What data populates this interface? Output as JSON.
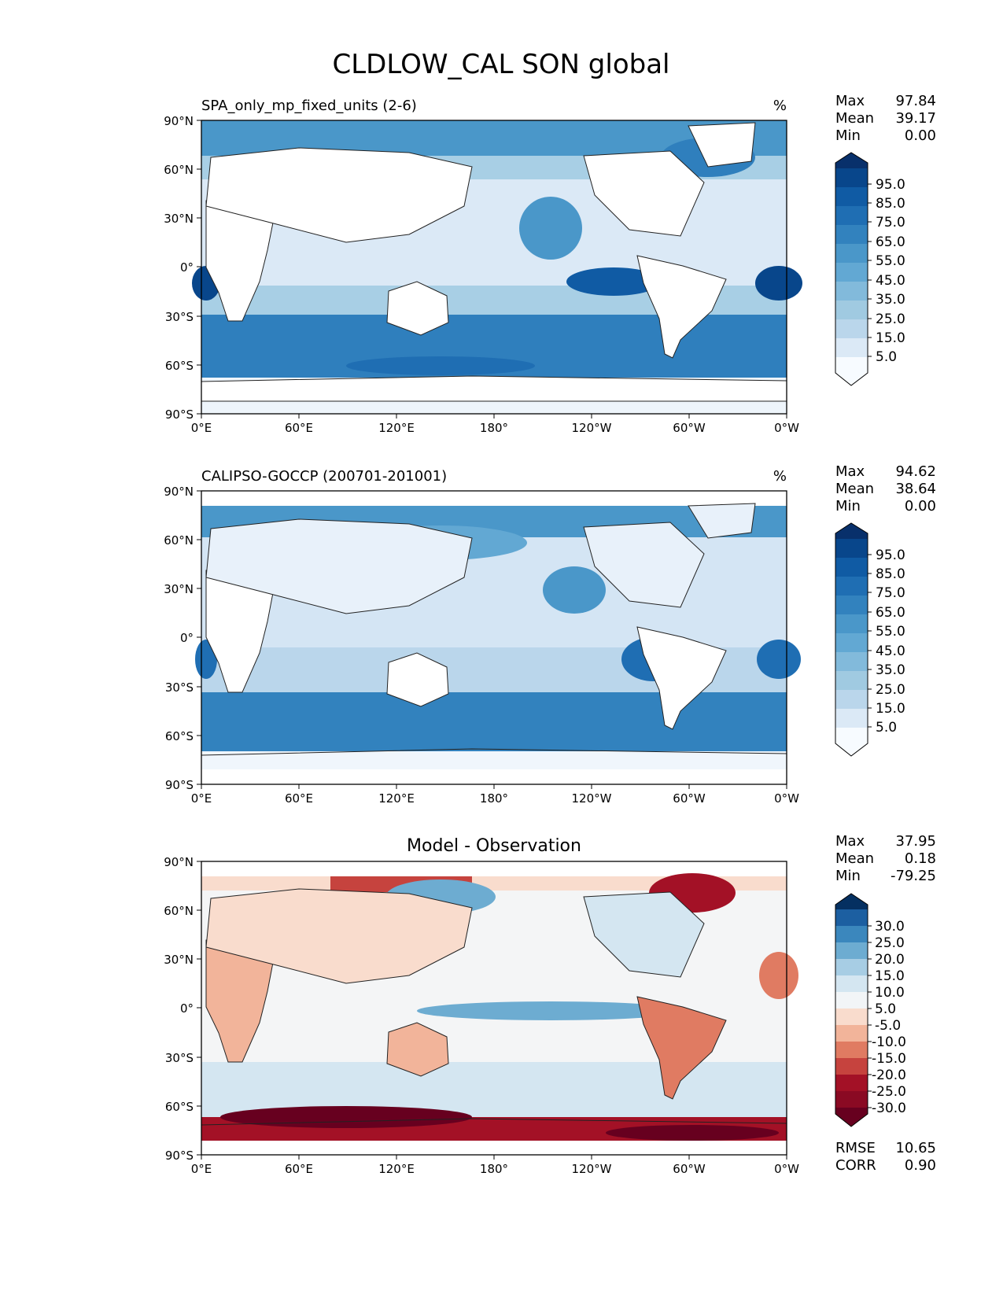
{
  "figure": {
    "title": "CLDLOW_CAL SON global"
  },
  "axes": {
    "lat_ticks": [
      "90°N",
      "60°N",
      "30°N",
      "0°",
      "30°S",
      "60°S",
      "90°S"
    ],
    "lon_ticks": [
      "0°E",
      "60°E",
      "120°E",
      "180°",
      "120°W",
      "60°W",
      "0°W"
    ]
  },
  "chart_data": [
    {
      "type": "heatmap",
      "title": "SPA_only_mp_fixed_units (2-6)",
      "units": "%",
      "stats": [
        {
          "label": "Max",
          "value": "97.84"
        },
        {
          "label": "Mean",
          "value": "39.17"
        },
        {
          "label": "Min",
          "value": "0.00"
        }
      ],
      "colorbar": {
        "levels": [
          0,
          5,
          10,
          15,
          20,
          25,
          30,
          35,
          40,
          45,
          50,
          55,
          60,
          65,
          70,
          75,
          80,
          85,
          90,
          95,
          100
        ],
        "tick_labels": [
          "5.0",
          "15.0",
          "25.0",
          "35.0",
          "45.0",
          "55.0",
          "65.0",
          "75.0",
          "85.0",
          "95.0"
        ],
        "extend": "both",
        "colormap": "Blues"
      }
    },
    {
      "type": "heatmap",
      "title": "CALIPSO-GOCCP (200701-201001)",
      "units": "%",
      "stats": [
        {
          "label": "Max",
          "value": "94.62"
        },
        {
          "label": "Mean",
          "value": "38.64"
        },
        {
          "label": "Min",
          "value": "0.00"
        }
      ],
      "colorbar": {
        "levels": [
          0,
          5,
          10,
          15,
          20,
          25,
          30,
          35,
          40,
          45,
          50,
          55,
          60,
          65,
          70,
          75,
          80,
          85,
          90,
          95,
          100
        ],
        "tick_labels": [
          "5.0",
          "15.0",
          "25.0",
          "35.0",
          "45.0",
          "55.0",
          "65.0",
          "75.0",
          "85.0",
          "95.0"
        ],
        "extend": "both",
        "colormap": "Blues"
      }
    },
    {
      "type": "heatmap",
      "title": "Model - Observation",
      "stats": [
        {
          "label": "Max",
          "value": "37.95"
        },
        {
          "label": "Mean",
          "value": "0.18"
        },
        {
          "label": "Min",
          "value": "-79.25"
        }
      ],
      "metrics": [
        {
          "label": "RMSE",
          "value": "10.65"
        },
        {
          "label": "CORR",
          "value": "0.90"
        }
      ],
      "colorbar": {
        "levels": [
          -35,
          -30,
          -25,
          -20,
          -15,
          -10,
          -5,
          5,
          10,
          15,
          20,
          25,
          30,
          35
        ],
        "tick_labels": [
          "30.0",
          "25.0",
          "20.0",
          "15.0",
          "10.0",
          "5.0",
          "-5.0",
          "-10.0",
          "-15.0",
          "-20.0",
          "-25.0",
          "-30.0"
        ],
        "extend": "both",
        "colormap": "RdBu"
      }
    }
  ],
  "colors": {
    "blues": [
      "#f7fbff",
      "#e6f0f9",
      "#dbe9f6",
      "#cde0f1",
      "#bad6eb",
      "#a0cae1",
      "#82badb",
      "#62a8d3",
      "#4a97c9",
      "#3282be",
      "#1f6eb3",
      "#105ba4",
      "#08468b",
      "#08306b"
    ],
    "rdbu_blue": [
      "#f2f5f7",
      "#d4e6f1",
      "#a7cde4",
      "#6dacd1",
      "#3b87bd",
      "#1c5fa1",
      "#053061"
    ],
    "rdbu_red": [
      "#f7f7f7",
      "#f9dccd",
      "#f2b49a",
      "#e07b62",
      "#c6433e",
      "#a31126",
      "#67001f"
    ]
  }
}
